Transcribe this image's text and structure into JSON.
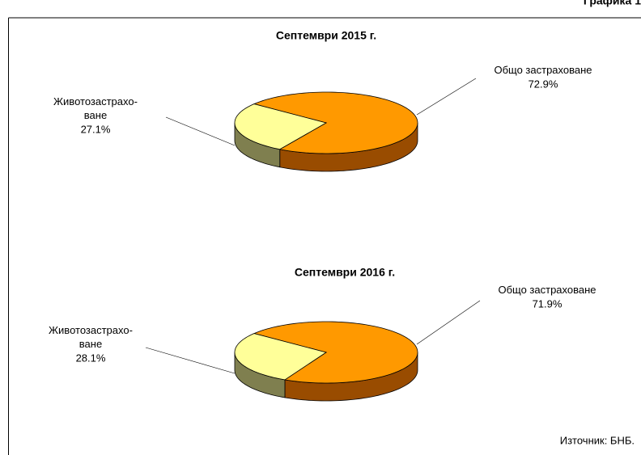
{
  "figure_label": "Графика 1",
  "source": "Източник: БНБ.",
  "chart_data": [
    {
      "type": "pie",
      "title": "Септември 2015 г.",
      "categories": [
        "Животозастрахо-ване",
        "Общо застраховане"
      ],
      "values": [
        27.1,
        72.9
      ],
      "value_labels": [
        "27.1%",
        "72.9%"
      ],
      "colors": [
        "#FFFF99",
        "#FF9900"
      ]
    },
    {
      "type": "pie",
      "title": "Септември 2016 г.",
      "categories": [
        "Животозастрахо-ване",
        "Общо застраховане"
      ],
      "values": [
        28.1,
        71.9
      ],
      "value_labels": [
        "28.1%",
        "71.9%"
      ],
      "colors": [
        "#FFFF99",
        "#FF9900"
      ]
    }
  ]
}
